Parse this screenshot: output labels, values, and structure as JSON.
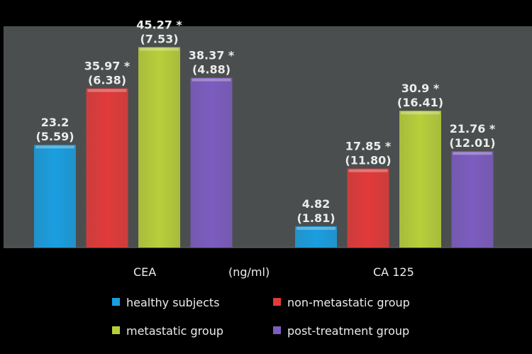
{
  "chart_data": {
    "type": "bar",
    "categories": [
      "CEA",
      "CA 125"
    ],
    "unit_label": "(ng/ml)",
    "ylim": [
      0,
      50
    ],
    "grid": false,
    "legend_position": "bottom",
    "series": [
      {
        "name": "healthy subjects",
        "color": "#1a9ee0",
        "values": [
          23.2,
          4.82
        ],
        "labels": [
          "23.2",
          "4.82"
        ],
        "sd_labels": [
          "(5.59)",
          "(1.81)"
        ]
      },
      {
        "name": "non-metastatic group",
        "color": "#e23a3a",
        "values": [
          35.97,
          17.85
        ],
        "labels": [
          "35.97 *",
          "17.85 *"
        ],
        "sd_labels": [
          "(6.38)",
          "(11.80)"
        ]
      },
      {
        "name": "metastatic group",
        "color": "#b8cf3a",
        "values": [
          45.27,
          30.9
        ],
        "labels": [
          "45.27 *",
          "30.9 *"
        ],
        "sd_labels": [
          "(7.53)",
          "(16.41)"
        ]
      },
      {
        "name": "post-treatment group",
        "color": "#7c5cc0",
        "values": [
          38.37,
          21.76
        ],
        "labels": [
          "38.37 *",
          "21.76 *"
        ],
        "sd_labels": [
          "(4.88)",
          "(12.01)"
        ]
      }
    ],
    "plot_background": "#4b4e4e",
    "page_background": "#000000"
  }
}
